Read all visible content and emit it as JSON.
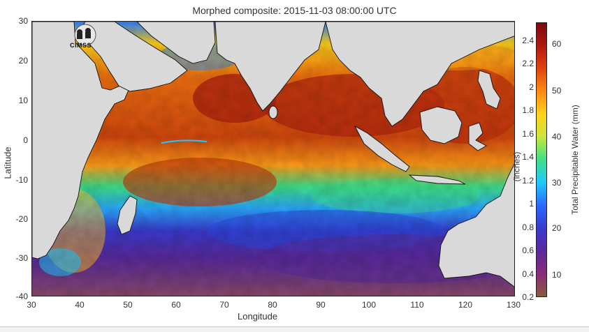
{
  "title": "Morphed composite: 2015-11-03 08:00:00 UTC",
  "axes": {
    "xlabel": "Longitude",
    "ylabel": "Latitude",
    "x_ticks": [
      "30",
      "40",
      "50",
      "60",
      "70",
      "80",
      "90",
      "100",
      "110",
      "120",
      "130"
    ],
    "y_ticks": [
      "30",
      "20",
      "10",
      "0",
      "-10",
      "-20",
      "-30",
      "-40"
    ],
    "xlim": [
      30,
      130
    ],
    "ylim": [
      -40,
      30
    ]
  },
  "colorbar": {
    "inch_label": "(inches)",
    "mm_label": "Total Precipitable Water (mm)",
    "inch_ticks": [
      "2.4",
      "2.2",
      "2",
      "1.8",
      "1.6",
      "1.4",
      "1.2",
      "1",
      "0.8",
      "0.6",
      "0.4",
      "0.2"
    ],
    "mm_ticks": [
      "60",
      "50",
      "40",
      "30",
      "20",
      "10"
    ],
    "colors": [
      "#8a5a3c",
      "#8a2a7a",
      "#5a2a9a",
      "#3a3acf",
      "#2a6aff",
      "#22c8ff",
      "#3ee08a",
      "#c8e63a",
      "#ffd21a",
      "#ff8a12",
      "#e0440e",
      "#b01a10",
      "#7a0a10"
    ]
  },
  "logo": {
    "name": "cimss-logo",
    "text": "CIMSS"
  },
  "map": {
    "land_color": "#d9d9d9",
    "tpw_colors": {
      "very_low": "#8a4a6a",
      "low": "#5a2aa0",
      "mid_low": "#3050e0",
      "mid": "#28c8f0",
      "mid_high": "#ffd21a",
      "high": "#f07010",
      "very_high": "#b0240e"
    }
  }
}
